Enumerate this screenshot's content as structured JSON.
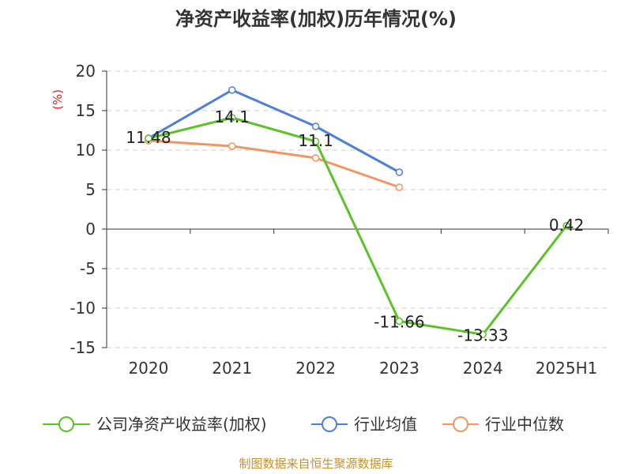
{
  "chart_data": {
    "type": "line",
    "title": "净资产收益率(加权)历年情况(%)",
    "ylabel": "(%)",
    "categories": [
      "2020",
      "2021",
      "2022",
      "2023",
      "2024",
      "2025H1"
    ],
    "ylim": [
      -15,
      20
    ],
    "yticks": [
      "20",
      "15",
      "10",
      "5",
      "0",
      "-5",
      "-10",
      "-15"
    ],
    "grid": true,
    "legend_position": "bottom",
    "series": [
      {
        "name": "公司净资产收益率(加权)",
        "color": "#5cc228",
        "values": [
          11.48,
          14.1,
          11.1,
          -11.66,
          -13.33,
          0.42
        ],
        "labels": [
          "11.48",
          "14.1",
          "11.1",
          "-11.66",
          "-13.33",
          "0.42"
        ]
      },
      {
        "name": "行业均值",
        "color": "#4f7fd9",
        "values": [
          11.5,
          17.6,
          13.0,
          7.2,
          null,
          null
        ]
      },
      {
        "name": "行业中位数",
        "color": "#f39562",
        "values": [
          11.2,
          10.5,
          9.0,
          5.3,
          null,
          null
        ]
      }
    ]
  },
  "source": "制图数据来自恒生聚源数据库"
}
